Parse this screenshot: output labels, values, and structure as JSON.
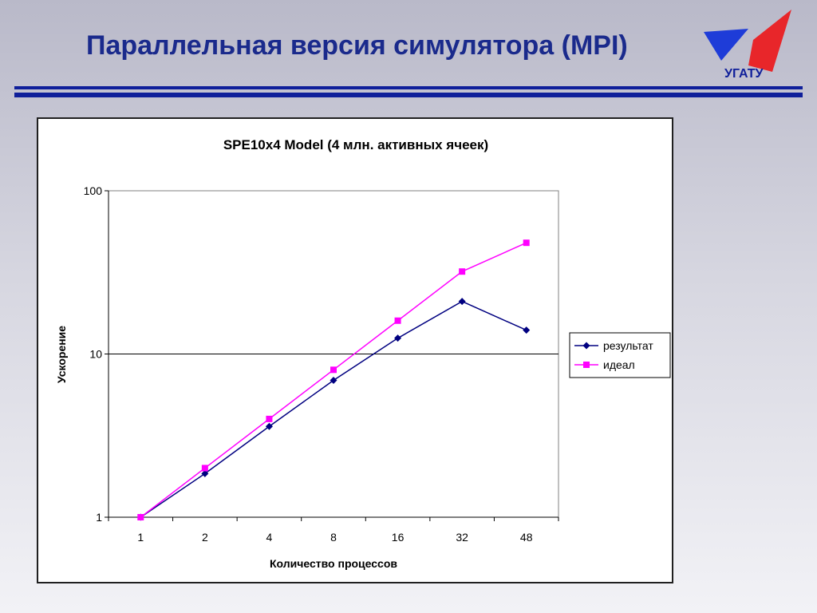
{
  "slide": {
    "title": "Параллельная версия симулятора (MPI)",
    "logo_text": "УГАТУ"
  },
  "colors": {
    "title": "#1a2a8c",
    "rules": "#0f1f9a",
    "logo_red": "#e8262a",
    "logo_blue": "#1e3cd8"
  },
  "chart_data": {
    "type": "line",
    "title": "SPE10x4 Model (4 млн. активных ячеек)",
    "xlabel": "Количество процессов",
    "ylabel": "Ускорение",
    "y_scale": "log",
    "ylim": [
      1,
      100
    ],
    "y_ticks": [
      "1",
      "10",
      "100"
    ],
    "categories": [
      "1",
      "2",
      "4",
      "8",
      "16",
      "32",
      "48"
    ],
    "grid": "horizontal at 10 only",
    "legend_position": "right",
    "series": [
      {
        "name": "результат",
        "color": "#000080",
        "marker": "diamond",
        "values": [
          1,
          1.85,
          3.6,
          6.9,
          12.5,
          21,
          14
        ]
      },
      {
        "name": "идеал",
        "color": "#ff00ff",
        "marker": "square",
        "values": [
          1,
          2,
          4,
          8,
          16,
          32,
          48
        ]
      }
    ]
  }
}
